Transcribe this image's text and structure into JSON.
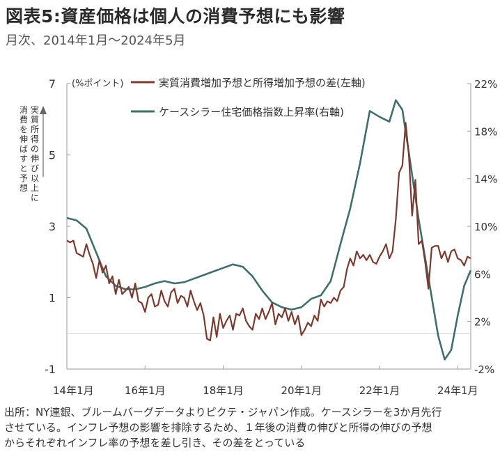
{
  "header": {
    "title": "図表5:資産価格は個人の消費予想にも影響",
    "subtitle": "月次、2014年1月～2024年5月"
  },
  "footnote": [
    "出所：NY連銀、ブルームバーグデータよりピクテ・ジャパン作成。ケースシラーを3か月先行",
    "させている。インフレ予想の影響を排除するため、１年後の消費の伸びと所得の伸びの予想",
    "からそれぞれインフレ率の予想を差し引き、その差をとっている"
  ],
  "chart_data": {
    "type": "line",
    "ylabel_left": "(%ポイント)",
    "y_annotation": "実質所得の伸び以上に消費を伸ばすと予想",
    "ylim_left": [
      -1,
      7
    ],
    "yticks_left": [
      {
        "value": -1,
        "label": "-1"
      },
      {
        "value": 1,
        "label": "1"
      },
      {
        "value": 3,
        "label": "3"
      },
      {
        "value": 5,
        "label": "5"
      },
      {
        "value": 7,
        "label": "7"
      }
    ],
    "ylim_right": [
      -2,
      22
    ],
    "yticks_right": [
      {
        "value": -2,
        "label": "-2%"
      },
      {
        "value": 2,
        "label": "2%"
      },
      {
        "value": 6,
        "label": "6%"
      },
      {
        "value": 10,
        "label": "10%"
      },
      {
        "value": 14,
        "label": "14%"
      },
      {
        "value": 18,
        "label": "18%"
      },
      {
        "value": 22,
        "label": "22%"
      }
    ],
    "xlim": [
      "2014-01",
      "2024-05"
    ],
    "xticks": [
      {
        "date": "2014-01",
        "label": "14年1月"
      },
      {
        "date": "2016-01",
        "label": "16年1月"
      },
      {
        "date": "2018-01",
        "label": "18年1月"
      },
      {
        "date": "2020-01",
        "label": "20年1月"
      },
      {
        "date": "2022-01",
        "label": "22年1月"
      },
      {
        "date": "2024-01",
        "label": "24年1月"
      }
    ],
    "grid": false,
    "legend_position": "top",
    "series": [
      {
        "name": "実質消費増加予想と所得増加予想の差(左軸)",
        "axis": "left",
        "color": "#7b3a30",
        "points": [
          [
            "2014-01",
            2.6
          ],
          [
            "2014-02",
            2.55
          ],
          [
            "2014-03",
            2.6
          ],
          [
            "2014-04",
            2.25
          ],
          [
            "2014-05",
            2.2
          ],
          [
            "2014-06",
            2.15
          ],
          [
            "2014-07",
            2.5
          ],
          [
            "2014-08",
            2.2
          ],
          [
            "2014-09",
            1.95
          ],
          [
            "2014-10",
            1.55
          ],
          [
            "2014-11",
            2.05
          ],
          [
            "2014-12",
            1.7
          ],
          [
            "2015-01",
            1.9
          ],
          [
            "2015-02",
            1.4
          ],
          [
            "2015-03",
            1.6
          ],
          [
            "2015-04",
            1.1
          ],
          [
            "2015-05",
            1.5
          ],
          [
            "2015-06",
            1.1
          ],
          [
            "2015-07",
            1.2
          ],
          [
            "2015-08",
            1.3
          ],
          [
            "2015-09",
            1.0
          ],
          [
            "2015-10",
            1.4
          ],
          [
            "2015-11",
            0.9
          ],
          [
            "2015-12",
            0.85
          ],
          [
            "2016-01",
            0.6
          ],
          [
            "2016-02",
            1.0
          ],
          [
            "2016-03",
            1.1
          ],
          [
            "2016-04",
            0.75
          ],
          [
            "2016-05",
            0.8
          ],
          [
            "2016-06",
            1.2
          ],
          [
            "2016-07",
            0.9
          ],
          [
            "2016-08",
            0.75
          ],
          [
            "2016-09",
            1.15
          ],
          [
            "2016-10",
            1.25
          ],
          [
            "2016-11",
            0.85
          ],
          [
            "2016-12",
            1.05
          ],
          [
            "2017-01",
            1.0
          ],
          [
            "2017-02",
            0.75
          ],
          [
            "2017-03",
            1.2
          ],
          [
            "2017-04",
            0.9
          ],
          [
            "2017-05",
            0.65
          ],
          [
            "2017-06",
            0.85
          ],
          [
            "2017-07",
            0.5
          ],
          [
            "2017-08",
            -0.15
          ],
          [
            "2017-09",
            -0.2
          ],
          [
            "2017-10",
            0.45
          ],
          [
            "2017-11",
            -0.1
          ],
          [
            "2017-12",
            0.55
          ],
          [
            "2018-01",
            0.15
          ],
          [
            "2018-02",
            0.35
          ],
          [
            "2018-03",
            0.5
          ],
          [
            "2018-04",
            0.1
          ],
          [
            "2018-05",
            0.55
          ],
          [
            "2018-06",
            0.5
          ],
          [
            "2018-07",
            0.7
          ],
          [
            "2018-08",
            0.35
          ],
          [
            "2018-09",
            0.2
          ],
          [
            "2018-10",
            0.1
          ],
          [
            "2018-11",
            0.55
          ],
          [
            "2018-12",
            0.4
          ],
          [
            "2019-01",
            0.7
          ],
          [
            "2019-02",
            0.4
          ],
          [
            "2019-03",
            0.6
          ],
          [
            "2019-04",
            0.85
          ],
          [
            "2019-05",
            0.25
          ],
          [
            "2019-06",
            0.55
          ],
          [
            "2019-07",
            0.45
          ],
          [
            "2019-08",
            0.7
          ],
          [
            "2019-09",
            0.35
          ],
          [
            "2019-10",
            0.6
          ],
          [
            "2019-11",
            0.25
          ],
          [
            "2019-12",
            0.5
          ],
          [
            "2020-01",
            -0.05
          ],
          [
            "2020-02",
            0.1
          ],
          [
            "2020-03",
            0.3
          ],
          [
            "2020-04",
            0.2
          ],
          [
            "2020-05",
            0.5
          ],
          [
            "2020-06",
            0.35
          ],
          [
            "2020-07",
            0.95
          ],
          [
            "2020-08",
            0.75
          ],
          [
            "2020-09",
            0.9
          ],
          [
            "2020-10",
            0.85
          ],
          [
            "2020-11",
            1.0
          ],
          [
            "2020-12",
            0.9
          ],
          [
            "2021-01",
            1.2
          ],
          [
            "2021-02",
            1.3
          ],
          [
            "2021-03",
            1.8
          ],
          [
            "2021-04",
            2.1
          ],
          [
            "2021-05",
            1.9
          ],
          [
            "2021-06",
            2.3
          ],
          [
            "2021-07",
            2.1
          ],
          [
            "2021-08",
            2.2
          ],
          [
            "2021-09",
            2.05
          ],
          [
            "2021-10",
            2.2
          ],
          [
            "2021-11",
            2.0
          ],
          [
            "2021-12",
            1.95
          ],
          [
            "2022-01",
            2.15
          ],
          [
            "2022-02",
            2.3
          ],
          [
            "2022-03",
            2.5
          ],
          [
            "2022-04",
            2.1
          ],
          [
            "2022-05",
            2.3
          ],
          [
            "2022-06",
            3.2
          ],
          [
            "2022-07",
            4.5
          ],
          [
            "2022-08",
            4.7
          ],
          [
            "2022-09",
            5.9
          ],
          [
            "2022-10",
            5.0
          ],
          [
            "2022-11",
            3.3
          ],
          [
            "2022-12",
            4.3
          ],
          [
            "2023-01",
            2.5
          ],
          [
            "2023-02",
            2.6
          ],
          [
            "2023-03",
            2.0
          ],
          [
            "2023-04",
            1.25
          ],
          [
            "2023-05",
            2.4
          ],
          [
            "2023-06",
            2.45
          ],
          [
            "2023-07",
            2.45
          ],
          [
            "2023-08",
            2.1
          ],
          [
            "2023-09",
            2.3
          ],
          [
            "2023-10",
            2.0
          ],
          [
            "2023-11",
            2.3
          ],
          [
            "2023-12",
            2.35
          ],
          [
            "2024-01",
            2.1
          ],
          [
            "2024-02",
            2.05
          ],
          [
            "2024-03",
            1.9
          ],
          [
            "2024-04",
            2.15
          ],
          [
            "2024-05",
            2.1
          ]
        ]
      },
      {
        "name": "ケースシラー住宅価格指数上昇率(右軸)",
        "axis": "right",
        "color": "#3f6e6c",
        "points": [
          [
            "2014-01",
            10.7
          ],
          [
            "2014-04",
            10.5
          ],
          [
            "2014-07",
            9.8
          ],
          [
            "2014-10",
            7.8
          ],
          [
            "2015-01",
            5.8
          ],
          [
            "2015-04",
            5.0
          ],
          [
            "2015-07",
            4.7
          ],
          [
            "2015-10",
            4.7
          ],
          [
            "2016-01",
            4.9
          ],
          [
            "2016-04",
            5.2
          ],
          [
            "2016-07",
            5.4
          ],
          [
            "2016-10",
            5.2
          ],
          [
            "2017-01",
            5.3
          ],
          [
            "2017-04",
            5.6
          ],
          [
            "2017-07",
            5.9
          ],
          [
            "2017-10",
            6.2
          ],
          [
            "2018-01",
            6.5
          ],
          [
            "2018-04",
            6.8
          ],
          [
            "2018-07",
            6.6
          ],
          [
            "2018-10",
            5.8
          ],
          [
            "2019-01",
            4.6
          ],
          [
            "2019-04",
            3.6
          ],
          [
            "2019-07",
            3.2
          ],
          [
            "2019-10",
            3.0
          ],
          [
            "2020-01",
            3.2
          ],
          [
            "2020-04",
            3.9
          ],
          [
            "2020-07",
            4.2
          ],
          [
            "2020-10",
            5.4
          ],
          [
            "2021-01",
            8.5
          ],
          [
            "2021-04",
            11.5
          ],
          [
            "2021-07",
            15.3
          ],
          [
            "2021-10",
            19.7
          ],
          [
            "2022-01",
            19.2
          ],
          [
            "2022-04",
            18.8
          ],
          [
            "2022-06",
            20.6
          ],
          [
            "2022-08",
            19.8
          ],
          [
            "2022-10",
            16.2
          ],
          [
            "2023-01",
            10.6
          ],
          [
            "2023-04",
            5.7
          ],
          [
            "2023-07",
            0.8
          ],
          [
            "2023-09",
            -1.2
          ],
          [
            "2023-11",
            -0.4
          ],
          [
            "2024-01",
            2.5
          ],
          [
            "2024-03",
            5.0
          ],
          [
            "2024-05",
            6.3
          ]
        ]
      }
    ]
  }
}
